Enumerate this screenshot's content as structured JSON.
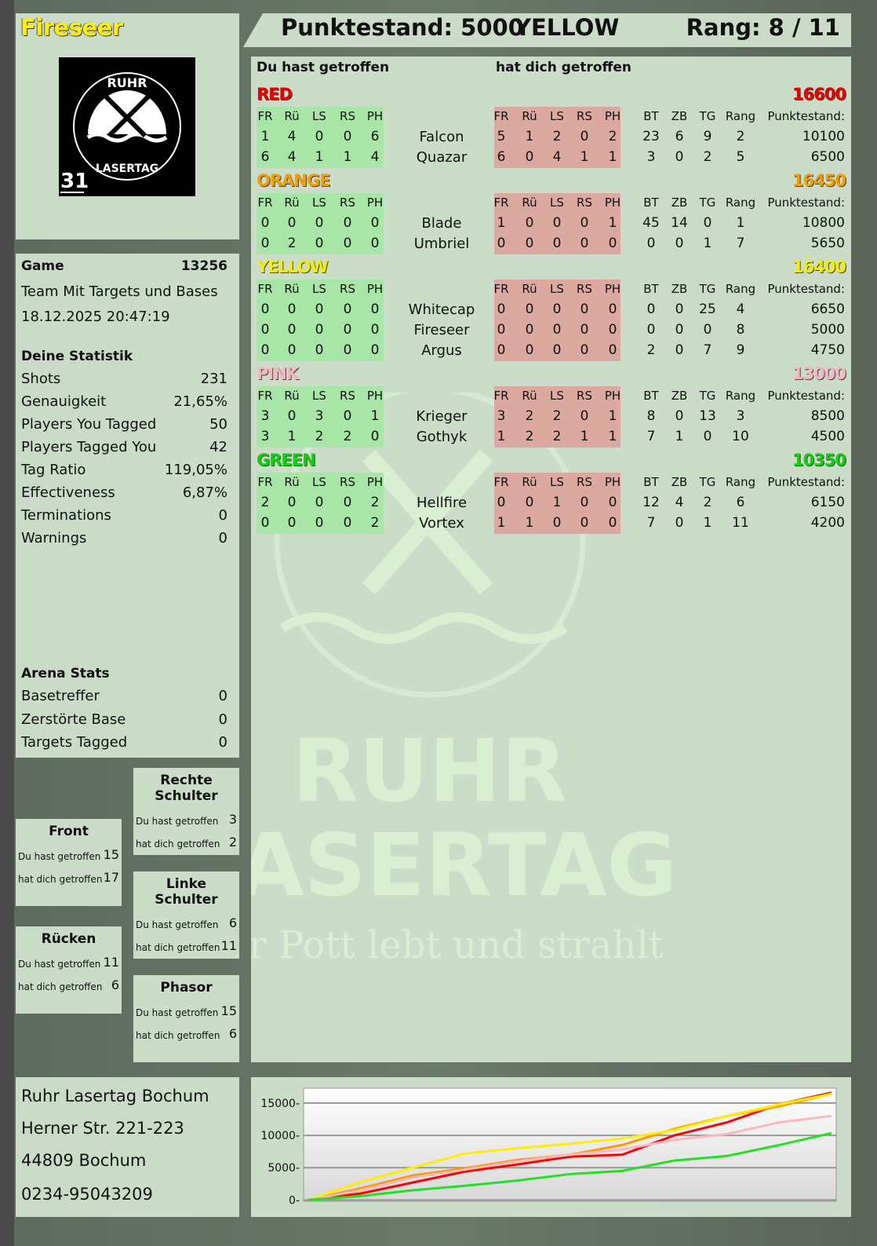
{
  "player": {
    "name": "Fireseer",
    "vest_number": "31",
    "logo_text": "RUHR LASERTAG"
  },
  "header": {
    "score_label": "Punktestand: 5000",
    "team": "YELLOW",
    "rank_label": "Rang: 8 / 11"
  },
  "main": {
    "hit_by_you_label": "Du hast getroffen",
    "hit_you_label": "hat dich getroffen",
    "cols_left": [
      "FR",
      "Rü",
      "LS",
      "RS",
      "PH"
    ],
    "cols_right": [
      "FR",
      "Rü",
      "LS",
      "RS",
      "PH"
    ],
    "cols_stats": [
      "BT",
      "ZB",
      "TG",
      "Rang"
    ],
    "score_col": "Punktestand:",
    "teams": [
      {
        "name": "RED",
        "color": "#e60000",
        "score": "16600",
        "players": [
          {
            "hit": [
              "1",
              "4",
              "0",
              "0",
              "6"
            ],
            "name": "Falcon",
            "got": [
              "5",
              "1",
              "2",
              "0",
              "2"
            ],
            "stats": [
              "23",
              "6",
              "9",
              "2"
            ],
            "score": "10100"
          },
          {
            "hit": [
              "6",
              "4",
              "1",
              "1",
              "4"
            ],
            "name": "Quazar",
            "got": [
              "6",
              "0",
              "4",
              "1",
              "1"
            ],
            "stats": [
              "3",
              "0",
              "2",
              "5"
            ],
            "score": "6500"
          }
        ]
      },
      {
        "name": "ORANGE",
        "color": "#f0a000",
        "score": "16450",
        "players": [
          {
            "hit": [
              "0",
              "0",
              "0",
              "0",
              "0"
            ],
            "name": "Blade",
            "got": [
              "1",
              "0",
              "0",
              "0",
              "1"
            ],
            "stats": [
              "45",
              "14",
              "0",
              "1"
            ],
            "score": "10800"
          },
          {
            "hit": [
              "0",
              "2",
              "0",
              "0",
              "0"
            ],
            "name": "Umbriel",
            "got": [
              "0",
              "0",
              "0",
              "0",
              "0"
            ],
            "stats": [
              "0",
              "0",
              "1",
              "7"
            ],
            "score": "5650"
          }
        ]
      },
      {
        "name": "YELLOW",
        "color": "#f2f000",
        "score": "16400",
        "players": [
          {
            "hit": [
              "0",
              "0",
              "0",
              "0",
              "0"
            ],
            "name": "Whitecap",
            "got": [
              "0",
              "0",
              "0",
              "0",
              "0"
            ],
            "stats": [
              "0",
              "0",
              "25",
              "4"
            ],
            "score": "6650"
          },
          {
            "hit": [
              "0",
              "0",
              "0",
              "0",
              "0"
            ],
            "name": "Fireseer",
            "got": [
              "0",
              "0",
              "0",
              "0",
              "0"
            ],
            "stats": [
              "0",
              "0",
              "0",
              "8"
            ],
            "score": "5000"
          },
          {
            "hit": [
              "0",
              "0",
              "0",
              "0",
              "0"
            ],
            "name": "Argus",
            "got": [
              "0",
              "0",
              "0",
              "0",
              "0"
            ],
            "stats": [
              "2",
              "0",
              "7",
              "9"
            ],
            "score": "4750"
          }
        ]
      },
      {
        "name": "PINK",
        "color": "#f5b6c4",
        "score": "13000",
        "players": [
          {
            "hit": [
              "3",
              "0",
              "3",
              "0",
              "1"
            ],
            "name": "Krieger",
            "got": [
              "3",
              "2",
              "2",
              "0",
              "1"
            ],
            "stats": [
              "8",
              "0",
              "13",
              "3"
            ],
            "score": "8500"
          },
          {
            "hit": [
              "3",
              "1",
              "2",
              "2",
              "0"
            ],
            "name": "Gothyk",
            "got": [
              "1",
              "2",
              "2",
              "1",
              "1"
            ],
            "stats": [
              "7",
              "1",
              "0",
              "10"
            ],
            "score": "4500"
          }
        ]
      },
      {
        "name": "GREEN",
        "color": "#10d010",
        "score": "10350",
        "players": [
          {
            "hit": [
              "2",
              "0",
              "0",
              "0",
              "2"
            ],
            "name": "Hellfire",
            "got": [
              "0",
              "0",
              "1",
              "0",
              "0"
            ],
            "stats": [
              "12",
              "4",
              "2",
              "6"
            ],
            "score": "6150"
          },
          {
            "hit": [
              "0",
              "0",
              "0",
              "0",
              "2"
            ],
            "name": "Vortex",
            "got": [
              "1",
              "1",
              "0",
              "0",
              "0"
            ],
            "stats": [
              "7",
              "0",
              "1",
              "11"
            ],
            "score": "4200"
          }
        ]
      }
    ]
  },
  "game": {
    "label": "Game",
    "id": "13256",
    "mode": "Team Mit Targets und Bases",
    "datetime": "18.12.2025 20:47:19"
  },
  "stats": {
    "title": "Deine Statistik",
    "items": [
      {
        "label": "Shots",
        "value": "231"
      },
      {
        "label": "Genauigkeit",
        "value": "21,65%"
      },
      {
        "label": "Players You Tagged",
        "value": "50"
      },
      {
        "label": "Players Tagged You",
        "value": "42"
      },
      {
        "label": "Tag Ratio",
        "value": "119,05%"
      },
      {
        "label": "Effectiveness",
        "value": "6,87%"
      },
      {
        "label": "Terminations",
        "value": "0"
      },
      {
        "label": "Warnings",
        "value": "0"
      }
    ]
  },
  "arena": {
    "title": "Arena Stats",
    "items": [
      {
        "label": "Basetreffer",
        "value": "0"
      },
      {
        "label": "Zerstörte Base",
        "value": "0"
      },
      {
        "label": "Targets Tagged",
        "value": "0"
      }
    ]
  },
  "zones": [
    {
      "title": "Rechte Schulter",
      "hit_label": "Du hast getroffen",
      "hit": "3",
      "got_label": "hat dich getroffen",
      "got": "2"
    },
    {
      "title": "Front",
      "hit_label": "Du hast getroffen",
      "hit": "15",
      "got_label": "hat dich getroffen",
      "got": "17"
    },
    {
      "title": "Linke Schulter",
      "hit_label": "Du hast getroffen",
      "hit": "6",
      "got_label": "hat dich getroffen",
      "got": "11"
    },
    {
      "title": "Rücken",
      "hit_label": "Du hast getroffen",
      "hit": "11",
      "got_label": "hat dich getroffen",
      "got": "6"
    },
    {
      "title": "Phasor",
      "hit_label": "Du hast getroffen",
      "hit": "15",
      "got_label": "hat dich getroffen",
      "got": "6"
    }
  ],
  "address": {
    "line1": "Ruhr Lasertag Bochum",
    "line2": "Herner Str. 221-223",
    "line3": "44809 Bochum",
    "phone": "0234-95043209"
  },
  "watermark": {
    "line1": "RUHR",
    "line2": "LASERTAG",
    "slogan": "Der Pott lebt und strahlt"
  },
  "chart_data": {
    "type": "line",
    "ylim": [
      -200,
      17300
    ],
    "yticks": [
      0,
      5000,
      10000,
      15000
    ],
    "grid": true,
    "x": [
      0,
      1,
      2,
      3,
      4,
      5,
      6,
      7,
      8,
      9,
      10
    ],
    "series": [
      {
        "color": "#ff0000",
        "values": [
          0,
          1000,
          2700,
          4400,
          5500,
          6700,
          7000,
          10000,
          12000,
          14800,
          16600
        ]
      },
      {
        "color": "#ff9900",
        "values": [
          0,
          1800,
          3800,
          4900,
          6200,
          7000,
          8500,
          11000,
          13000,
          14500,
          16450
        ]
      },
      {
        "color": "#ffee00",
        "values": [
          0,
          2800,
          5000,
          7200,
          8000,
          8700,
          9500,
          10800,
          13000,
          14800,
          16400
        ]
      },
      {
        "color": "#ffb6c1",
        "values": [
          0,
          1500,
          3500,
          4700,
          6000,
          7000,
          7800,
          9300,
          10200,
          12000,
          13000
        ]
      },
      {
        "color": "#22e022",
        "values": [
          0,
          600,
          1500,
          2200,
          3000,
          4000,
          4500,
          6100,
          6800,
          8500,
          10350
        ]
      }
    ]
  }
}
